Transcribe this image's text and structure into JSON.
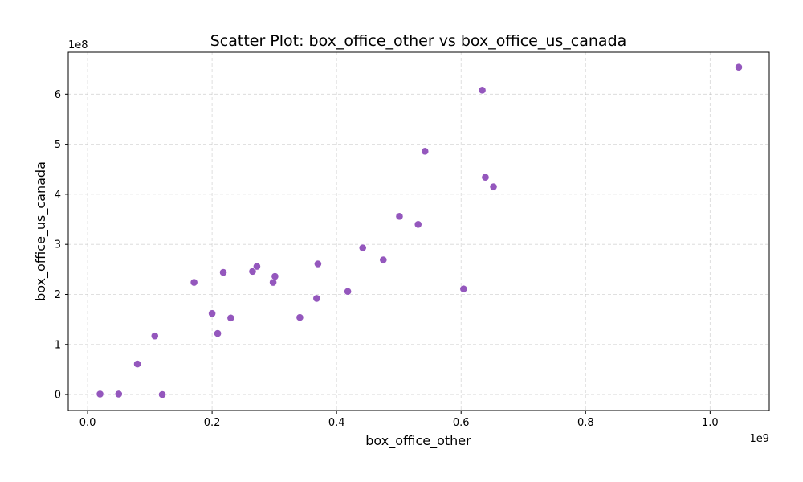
{
  "chart_data": {
    "type": "scatter",
    "title": "Scatter Plot: box_office_other vs box_office_us_canada",
    "xlabel": "box_office_other",
    "ylabel": "box_office_us_canada",
    "x_offset_label": "1e9",
    "y_offset_label": "1e8",
    "x_scale": 1000000000,
    "y_scale": 100000000,
    "xlim": [
      -0.031,
      1.095
    ],
    "ylim": [
      -0.32,
      6.84
    ],
    "x_ticks": [
      0.0,
      0.2,
      0.4,
      0.6,
      0.8,
      1.0
    ],
    "x_tick_labels": [
      "0.0",
      "0.2",
      "0.4",
      "0.6",
      "0.8",
      "1.0"
    ],
    "y_ticks": [
      0,
      1,
      2,
      3,
      4,
      5,
      6
    ],
    "y_tick_labels": [
      "0",
      "1",
      "2",
      "3",
      "4",
      "5",
      "6"
    ],
    "grid": true,
    "marker_color": "#9457bd",
    "series": [
      {
        "points": [
          [
            0.02,
            0.01
          ],
          [
            0.05,
            0.01
          ],
          [
            0.08,
            0.61
          ],
          [
            0.108,
            1.17
          ],
          [
            0.12,
            0.0
          ],
          [
            0.171,
            2.24
          ],
          [
            0.2,
            1.62
          ],
          [
            0.209,
            1.22
          ],
          [
            0.218,
            2.44
          ],
          [
            0.23,
            1.53
          ],
          [
            0.265,
            2.46
          ],
          [
            0.272,
            2.56
          ],
          [
            0.298,
            2.24
          ],
          [
            0.301,
            2.36
          ],
          [
            0.341,
            1.54
          ],
          [
            0.368,
            1.92
          ],
          [
            0.37,
            2.61
          ],
          [
            0.418,
            2.06
          ],
          [
            0.442,
            2.93
          ],
          [
            0.475,
            2.69
          ],
          [
            0.501,
            3.56
          ],
          [
            0.531,
            3.4
          ],
          [
            0.542,
            4.86
          ],
          [
            0.604,
            2.11
          ],
          [
            0.634,
            6.08
          ],
          [
            0.639,
            4.34
          ],
          [
            0.652,
            4.15
          ],
          [
            1.046,
            6.54
          ]
        ]
      }
    ]
  }
}
